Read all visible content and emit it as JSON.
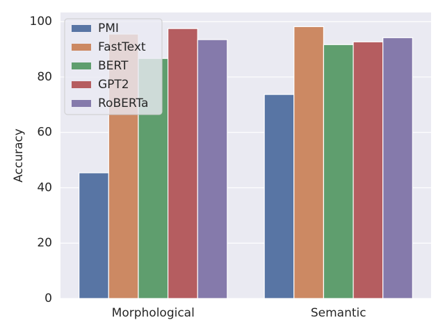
{
  "chart_data": {
    "type": "bar",
    "ylabel": "Accuracy",
    "categories": [
      "Morphological",
      "Semantic"
    ],
    "series": [
      {
        "name": "PMI",
        "color": "#5875a4",
        "values": [
          45.4,
          73.7
        ]
      },
      {
        "name": "FastText",
        "color": "#cc8963",
        "values": [
          95.5,
          98.2
        ]
      },
      {
        "name": "BERT",
        "color": "#5f9e6e",
        "values": [
          86.7,
          91.7
        ]
      },
      {
        "name": "GPT2",
        "color": "#b55d60",
        "values": [
          97.5,
          92.7
        ]
      },
      {
        "name": "RoBERTa",
        "color": "#857aab",
        "values": [
          93.5,
          94.2
        ]
      }
    ],
    "ylim": [
      0,
      103.3
    ],
    "yticks": [
      0,
      20,
      40,
      60,
      80,
      100
    ],
    "grid": true,
    "legend": "upper-left"
  }
}
